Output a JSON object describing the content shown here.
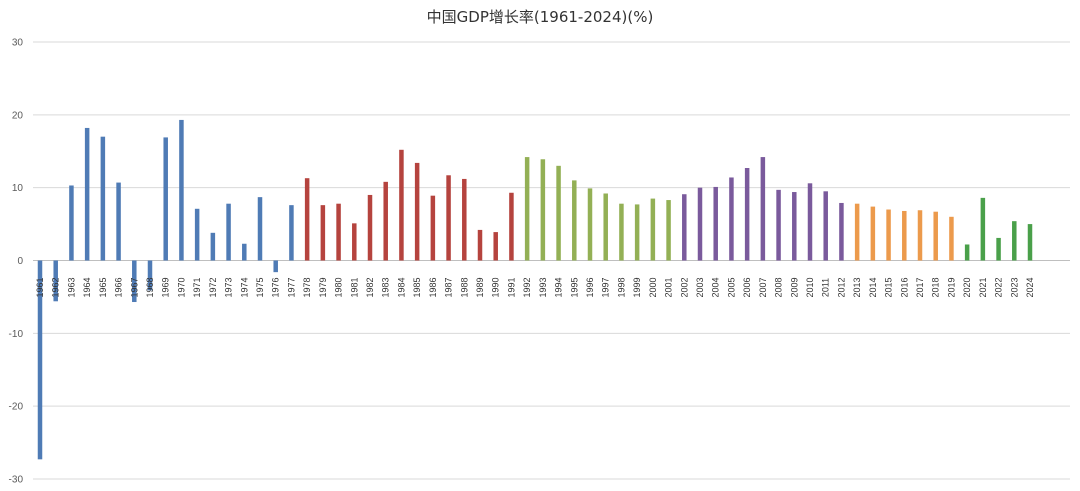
{
  "chart_data": {
    "type": "bar",
    "title": "中国GDP增长率(1961-2024)(%)",
    "xlabel": "",
    "ylabel": "",
    "ylim": [
      -30,
      30
    ],
    "yticks": [
      30,
      20,
      10,
      0,
      -10,
      -20,
      -30
    ],
    "grid": true,
    "categories": [
      "1961",
      "1962",
      "1963",
      "1964",
      "1965",
      "1966",
      "1967",
      "1968",
      "1969",
      "1970",
      "1971",
      "1972",
      "1973",
      "1974",
      "1975",
      "1976",
      "1977",
      "1978",
      "1979",
      "1980",
      "1981",
      "1982",
      "1983",
      "1984",
      "1985",
      "1986",
      "1987",
      "1988",
      "1989",
      "1990",
      "1991",
      "1992",
      "1993",
      "1994",
      "1995",
      "1996",
      "1997",
      "1998",
      "1999",
      "2000",
      "2001",
      "2002",
      "2003",
      "2004",
      "2005",
      "2006",
      "2007",
      "2008",
      "2009",
      "2010",
      "2011",
      "2012",
      "2013",
      "2014",
      "2015",
      "2016",
      "2017",
      "2018",
      "2019",
      "2020",
      "2021",
      "2022",
      "2023",
      "2024"
    ],
    "values": [
      -27.3,
      -5.6,
      10.3,
      18.2,
      17.0,
      10.7,
      -5.7,
      -4.1,
      16.9,
      19.3,
      7.1,
      3.8,
      7.8,
      2.3,
      8.7,
      -1.6,
      7.6,
      11.3,
      7.6,
      7.8,
      5.1,
      9.0,
      10.8,
      15.2,
      13.4,
      8.9,
      11.7,
      11.2,
      4.2,
      3.9,
      9.3,
      14.2,
      13.9,
      13.0,
      11.0,
      9.9,
      9.2,
      7.8,
      7.7,
      8.5,
      8.3,
      9.1,
      10.0,
      10.1,
      11.4,
      12.7,
      14.2,
      9.7,
      9.4,
      10.6,
      9.5,
      7.9,
      7.8,
      7.4,
      7.0,
      6.8,
      6.9,
      6.7,
      6.0,
      2.2,
      8.6,
      3.1,
      5.4,
      5.0
    ],
    "color_groups": [
      {
        "from": "1961",
        "to": "1977",
        "color": "#4f7bb5"
      },
      {
        "from": "1978",
        "to": "1991",
        "color": "#b5433e"
      },
      {
        "from": "1992",
        "to": "2001",
        "color": "#93b055"
      },
      {
        "from": "2002",
        "to": "2012",
        "color": "#7a5a9c"
      },
      {
        "from": "2013",
        "to": "2019",
        "color": "#ec9a4c"
      },
      {
        "from": "2020",
        "to": "2024",
        "color": "#4aa04a"
      }
    ],
    "grid_color": "#d9d9d9"
  }
}
